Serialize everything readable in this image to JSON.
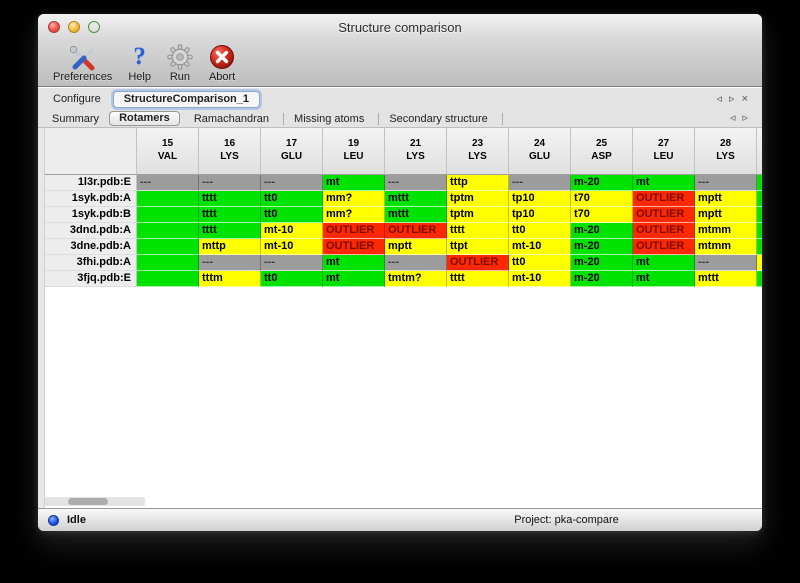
{
  "window": {
    "title": "Structure comparison"
  },
  "toolbar": [
    {
      "id": "preferences",
      "label": "Preferences",
      "icon": "tools-icon"
    },
    {
      "id": "help",
      "label": "Help",
      "icon": "help-icon",
      "glyph": "?"
    },
    {
      "id": "run",
      "label": "Run",
      "icon": "gear-icon"
    },
    {
      "id": "abort",
      "label": "Abort",
      "icon": "abort-icon"
    }
  ],
  "configure": {
    "label": "Configure",
    "selected_config": "StructureComparison_1",
    "nav": {
      "prev": "◃",
      "next": "▹",
      "close": "×"
    }
  },
  "result_tabs": {
    "items": [
      "Summary",
      "Rotamers",
      "Ramachandran",
      "Missing atoms",
      "Secondary structure"
    ],
    "selected": "Rotamers",
    "nav": {
      "prev": "◃",
      "next": "▹"
    }
  },
  "rotamer_table": {
    "columns": [
      {
        "number": "15",
        "residue": "VAL"
      },
      {
        "number": "16",
        "residue": "LYS"
      },
      {
        "number": "17",
        "residue": "GLU"
      },
      {
        "number": "19",
        "residue": "LEU"
      },
      {
        "number": "21",
        "residue": "LYS"
      },
      {
        "number": "23",
        "residue": "LYS"
      },
      {
        "number": "24",
        "residue": "GLU"
      },
      {
        "number": "25",
        "residue": "ASP"
      },
      {
        "number": "27",
        "residue": "LEU"
      },
      {
        "number": "28",
        "residue": "LYS"
      }
    ],
    "legend_colors": {
      "ok": "#00e300",
      "warn": "#ffff00",
      "outlier": "#fb2800",
      "missing": "#9c9c9c"
    },
    "rows": [
      {
        "label": "1l3r.pdb:E",
        "partial": "ok",
        "cells": [
          {
            "v": "---",
            "s": "missing"
          },
          {
            "v": "---",
            "s": "missing"
          },
          {
            "v": "---",
            "s": "missing"
          },
          {
            "v": "mt",
            "s": "ok"
          },
          {
            "v": "---",
            "s": "missing"
          },
          {
            "v": "tttp",
            "s": "warn"
          },
          {
            "v": "---",
            "s": "missing"
          },
          {
            "v": "m-20",
            "s": "ok"
          },
          {
            "v": "mt",
            "s": "ok"
          },
          {
            "v": "---",
            "s": "missing"
          }
        ]
      },
      {
        "label": "1syk.pdb:A",
        "partial": "ok",
        "cells": [
          {
            "v": "",
            "s": "ok"
          },
          {
            "v": "tttt",
            "s": "ok"
          },
          {
            "v": "tt0",
            "s": "ok"
          },
          {
            "v": "mm?",
            "s": "warn"
          },
          {
            "v": "mttt",
            "s": "ok"
          },
          {
            "v": "tptm",
            "s": "warn"
          },
          {
            "v": "tp10",
            "s": "warn"
          },
          {
            "v": "t70",
            "s": "warn"
          },
          {
            "v": "OUTLIER",
            "s": "outlier"
          },
          {
            "v": "mptt",
            "s": "warn"
          }
        ]
      },
      {
        "label": "1syk.pdb:B",
        "partial": "ok",
        "cells": [
          {
            "v": "",
            "s": "ok"
          },
          {
            "v": "tttt",
            "s": "ok"
          },
          {
            "v": "tt0",
            "s": "ok"
          },
          {
            "v": "mm?",
            "s": "warn"
          },
          {
            "v": "mttt",
            "s": "ok"
          },
          {
            "v": "tptm",
            "s": "warn"
          },
          {
            "v": "tp10",
            "s": "warn"
          },
          {
            "v": "t70",
            "s": "warn"
          },
          {
            "v": "OUTLIER",
            "s": "outlier"
          },
          {
            "v": "mptt",
            "s": "warn"
          }
        ]
      },
      {
        "label": "3dnd.pdb:A",
        "partial": "ok",
        "cells": [
          {
            "v": "",
            "s": "ok"
          },
          {
            "v": "tttt",
            "s": "ok"
          },
          {
            "v": "mt-10",
            "s": "warn"
          },
          {
            "v": "OUTLIER",
            "s": "outlier"
          },
          {
            "v": "OUTLIER",
            "s": "outlier"
          },
          {
            "v": "tttt",
            "s": "warn"
          },
          {
            "v": "tt0",
            "s": "warn"
          },
          {
            "v": "m-20",
            "s": "ok"
          },
          {
            "v": "OUTLIER",
            "s": "outlier"
          },
          {
            "v": "mtmm",
            "s": "warn"
          }
        ]
      },
      {
        "label": "3dne.pdb:A",
        "partial": "ok",
        "cells": [
          {
            "v": "",
            "s": "ok"
          },
          {
            "v": "mttp",
            "s": "warn"
          },
          {
            "v": "mt-10",
            "s": "warn"
          },
          {
            "v": "OUTLIER",
            "s": "outlier"
          },
          {
            "v": "mptt",
            "s": "warn"
          },
          {
            "v": "ttpt",
            "s": "warn"
          },
          {
            "v": "mt-10",
            "s": "warn"
          },
          {
            "v": "m-20",
            "s": "ok"
          },
          {
            "v": "OUTLIER",
            "s": "outlier"
          },
          {
            "v": "mtmm",
            "s": "warn"
          }
        ]
      },
      {
        "label": "3fhi.pdb:A",
        "partial": "warn",
        "cells": [
          {
            "v": "",
            "s": "ok"
          },
          {
            "v": "---",
            "s": "missing"
          },
          {
            "v": "---",
            "s": "missing"
          },
          {
            "v": "mt",
            "s": "ok"
          },
          {
            "v": "---",
            "s": "missing"
          },
          {
            "v": "OUTLIER",
            "s": "outlier"
          },
          {
            "v": "tt0",
            "s": "warn"
          },
          {
            "v": "m-20",
            "s": "ok"
          },
          {
            "v": "mt",
            "s": "ok"
          },
          {
            "v": "---",
            "s": "missing"
          }
        ]
      },
      {
        "label": "3fjq.pdb:E",
        "partial": "ok",
        "cells": [
          {
            "v": "",
            "s": "ok"
          },
          {
            "v": "tttm",
            "s": "warn"
          },
          {
            "v": "tt0",
            "s": "ok"
          },
          {
            "v": "mt",
            "s": "ok"
          },
          {
            "v": "tmtm?",
            "s": "warn"
          },
          {
            "v": "tttt",
            "s": "warn"
          },
          {
            "v": "mt-10",
            "s": "warn"
          },
          {
            "v": "m-20",
            "s": "ok"
          },
          {
            "v": "mt",
            "s": "ok"
          },
          {
            "v": "mttt",
            "s": "warn"
          }
        ]
      }
    ]
  },
  "statusbar": {
    "status": "Idle",
    "project": "Project: pka-compare"
  }
}
